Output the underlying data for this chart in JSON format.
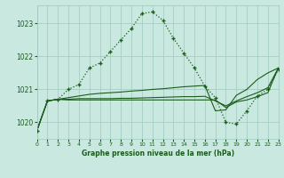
{
  "title": "Graphe pression niveau de la mer (hPa)",
  "bg_color": "#c8e8e0",
  "grid_color": "#a0c8c0",
  "line_color": "#1a5c1a",
  "xlim": [
    0,
    23
  ],
  "ylim": [
    1019.5,
    1023.55
  ],
  "yticks": [
    1020,
    1021,
    1022,
    1023
  ],
  "xticks": [
    0,
    1,
    2,
    3,
    4,
    5,
    6,
    7,
    8,
    9,
    10,
    11,
    12,
    13,
    14,
    15,
    16,
    17,
    18,
    19,
    20,
    21,
    22,
    23
  ],
  "hours": [
    0,
    1,
    2,
    3,
    4,
    5,
    6,
    7,
    8,
    9,
    10,
    11,
    12,
    13,
    14,
    15,
    16,
    17,
    18,
    19,
    20,
    21,
    22,
    23
  ],
  "dotted_y": [
    1019.75,
    1020.65,
    1020.7,
    1021.0,
    1021.15,
    1021.65,
    1021.8,
    1022.15,
    1022.5,
    1022.85,
    1023.3,
    1023.35,
    1023.1,
    1022.55,
    1022.1,
    1021.65,
    1021.1,
    1020.75,
    1020.0,
    1019.95,
    1020.35,
    1020.8,
    1021.0,
    1021.6
  ],
  "solid1_y": [
    1019.75,
    1020.65,
    1020.7,
    1020.75,
    1020.8,
    1020.85,
    1020.88,
    1020.9,
    1020.92,
    1020.95,
    1020.97,
    1021.0,
    1021.02,
    1021.05,
    1021.08,
    1021.1,
    1021.12,
    1020.35,
    1020.38,
    1020.82,
    1021.0,
    1021.3,
    1021.5,
    1021.65
  ],
  "solid2_y": [
    1019.75,
    1020.65,
    1020.7,
    1020.7,
    1020.72,
    1020.72,
    1020.72,
    1020.72,
    1020.73,
    1020.73,
    1020.74,
    1020.75,
    1020.76,
    1020.77,
    1020.78,
    1020.78,
    1020.79,
    1020.65,
    1020.5,
    1020.65,
    1020.78,
    1020.9,
    1021.05,
    1021.65
  ],
  "solid3_y": [
    1019.75,
    1020.65,
    1020.7,
    1020.68,
    1020.68,
    1020.68,
    1020.68,
    1020.68,
    1020.68,
    1020.68,
    1020.68,
    1020.68,
    1020.68,
    1020.68,
    1020.68,
    1020.68,
    1020.68,
    1020.68,
    1020.45,
    1020.62,
    1020.68,
    1020.78,
    1020.9,
    1021.65
  ]
}
